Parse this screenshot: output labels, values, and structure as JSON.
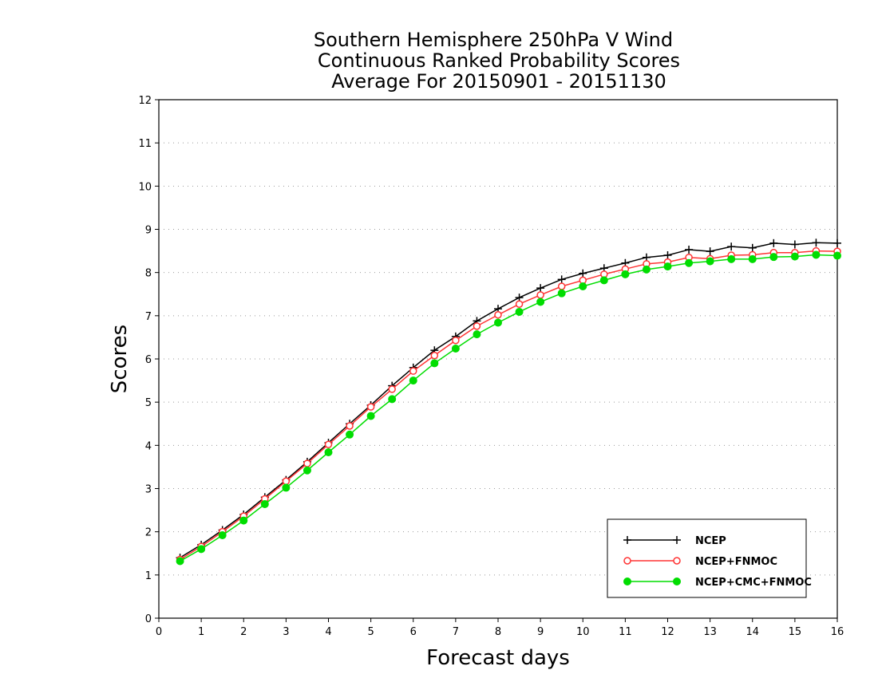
{
  "chart_data": {
    "type": "line",
    "title": [
      "Southern Hemisphere 250hPa V Wind",
      "Continuous Ranked Probability Scores",
      "Average For 20150901 - 20151130"
    ],
    "xlabel": "Forecast days",
    "ylabel": "Scores",
    "xlim": [
      0,
      16
    ],
    "ylim": [
      0,
      12
    ],
    "xticks": [
      "0",
      "1",
      "2",
      "3",
      "4",
      "5",
      "6",
      "7",
      "8",
      "9",
      "10",
      "11",
      "12",
      "13",
      "14",
      "15",
      "16"
    ],
    "yticks": [
      "0",
      "1",
      "2",
      "3",
      "4",
      "5",
      "6",
      "7",
      "8",
      "9",
      "10",
      "11",
      "12"
    ],
    "grid": "horizontal-dotted",
    "legend_position": "bottom-right",
    "x": [
      0.5,
      1,
      1.5,
      2,
      2.5,
      3,
      3.5,
      4,
      4.5,
      5,
      5.5,
      6,
      6.5,
      7,
      7.5,
      8,
      8.5,
      9,
      9.5,
      10,
      10.5,
      11,
      11.5,
      12,
      12.5,
      13,
      13.5,
      14,
      14.5,
      15,
      15.5,
      16
    ],
    "series": [
      {
        "name": "NCEP",
        "color": "#000000",
        "marker": "plus",
        "values": [
          1.4,
          1.7,
          2.04,
          2.4,
          2.8,
          3.2,
          3.62,
          4.06,
          4.5,
          4.93,
          5.38,
          5.8,
          6.2,
          6.52,
          6.88,
          7.16,
          7.42,
          7.64,
          7.84,
          7.98,
          8.1,
          8.22,
          8.35,
          8.4,
          8.53,
          8.49,
          8.6,
          8.57,
          8.68,
          8.65,
          8.69,
          8.68
        ]
      },
      {
        "name": "NCEP+FNMOC",
        "color": "#ff3333",
        "marker": "open-circle",
        "values": [
          1.36,
          1.66,
          2.0,
          2.36,
          2.76,
          3.17,
          3.58,
          4.02,
          4.45,
          4.89,
          5.3,
          5.72,
          6.08,
          6.43,
          6.76,
          7.02,
          7.27,
          7.48,
          7.68,
          7.82,
          7.96,
          8.08,
          8.2,
          8.24,
          8.35,
          8.32,
          8.4,
          8.41,
          8.46,
          8.46,
          8.5,
          8.49
        ]
      },
      {
        "name": "NCEP+CMC+FNMOC",
        "color": "#00dd00",
        "marker": "filled-circle",
        "values": [
          1.32,
          1.6,
          1.92,
          2.26,
          2.64,
          3.02,
          3.42,
          3.84,
          4.25,
          4.68,
          5.07,
          5.5,
          5.9,
          6.24,
          6.57,
          6.84,
          7.09,
          7.32,
          7.52,
          7.68,
          7.82,
          7.96,
          8.07,
          8.14,
          8.22,
          8.26,
          8.31,
          8.31,
          8.36,
          8.37,
          8.41,
          8.39
        ]
      }
    ]
  }
}
